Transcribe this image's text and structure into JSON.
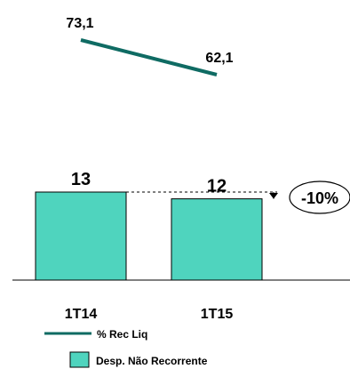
{
  "chart_data": {
    "type": "bar",
    "categories": [
      "1T14",
      "1T15"
    ],
    "series": [
      {
        "name": "Desp. Não Recorrente",
        "kind": "bar",
        "values": [
          13,
          12
        ],
        "labels": [
          "13",
          "12"
        ],
        "color": "#4fd4be"
      },
      {
        "name": "% Rec Liq",
        "kind": "line",
        "values": [
          73.1,
          62.1
        ],
        "labels": [
          "73,1",
          "62,1"
        ],
        "color": "#0f6b63"
      }
    ],
    "annotation": {
      "text": "-10%",
      "from": 13,
      "to": 12
    },
    "legend": [
      {
        "label": "% Rec Liq",
        "marker": "line",
        "color": "#0f6b63"
      },
      {
        "label": "Desp. Não Recorrente",
        "marker": "box",
        "color": "#4fd4be"
      }
    ],
    "legend_position": "bottom",
    "grid": false
  }
}
